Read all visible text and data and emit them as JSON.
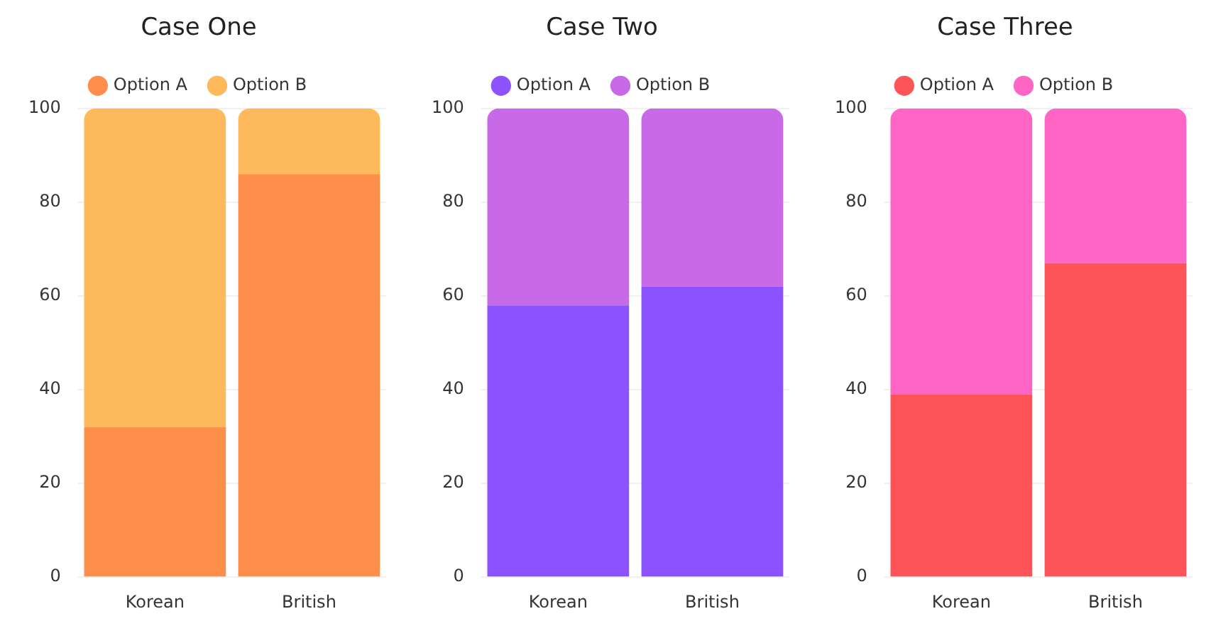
{
  "chart_data": [
    {
      "type": "bar",
      "title": "Case One",
      "categories": [
        "Korean",
        "British"
      ],
      "stacked": true,
      "legend": "top",
      "grid": "y",
      "ylim": [
        0,
        100
      ],
      "yticks": [
        0,
        20,
        40,
        60,
        80,
        100
      ],
      "series": [
        {
          "name": "Option A",
          "color": "#fd8f4a",
          "values": [
            32,
            86
          ]
        },
        {
          "name": "Option B",
          "color": "#fdb95a",
          "values": [
            68,
            14
          ]
        }
      ]
    },
    {
      "type": "bar",
      "title": "Case Two",
      "categories": [
        "Korean",
        "British"
      ],
      "stacked": true,
      "legend": "top",
      "grid": "y",
      "ylim": [
        0,
        100
      ],
      "yticks": [
        0,
        20,
        40,
        60,
        80,
        100
      ],
      "series": [
        {
          "name": "Option A",
          "color": "#8b52fe",
          "values": [
            58,
            62
          ]
        },
        {
          "name": "Option B",
          "color": "#c86ae8",
          "values": [
            42,
            38
          ]
        }
      ]
    },
    {
      "type": "bar",
      "title": "Case Three",
      "categories": [
        "Korean",
        "British"
      ],
      "stacked": true,
      "legend": "top",
      "grid": "y",
      "ylim": [
        0,
        100
      ],
      "yticks": [
        0,
        20,
        40,
        60,
        80,
        100
      ],
      "series": [
        {
          "name": "Option A",
          "color": "#fe5459",
          "values": [
            39,
            67
          ]
        },
        {
          "name": "Option B",
          "color": "#ff65c4",
          "values": [
            61,
            33
          ]
        }
      ]
    }
  ]
}
